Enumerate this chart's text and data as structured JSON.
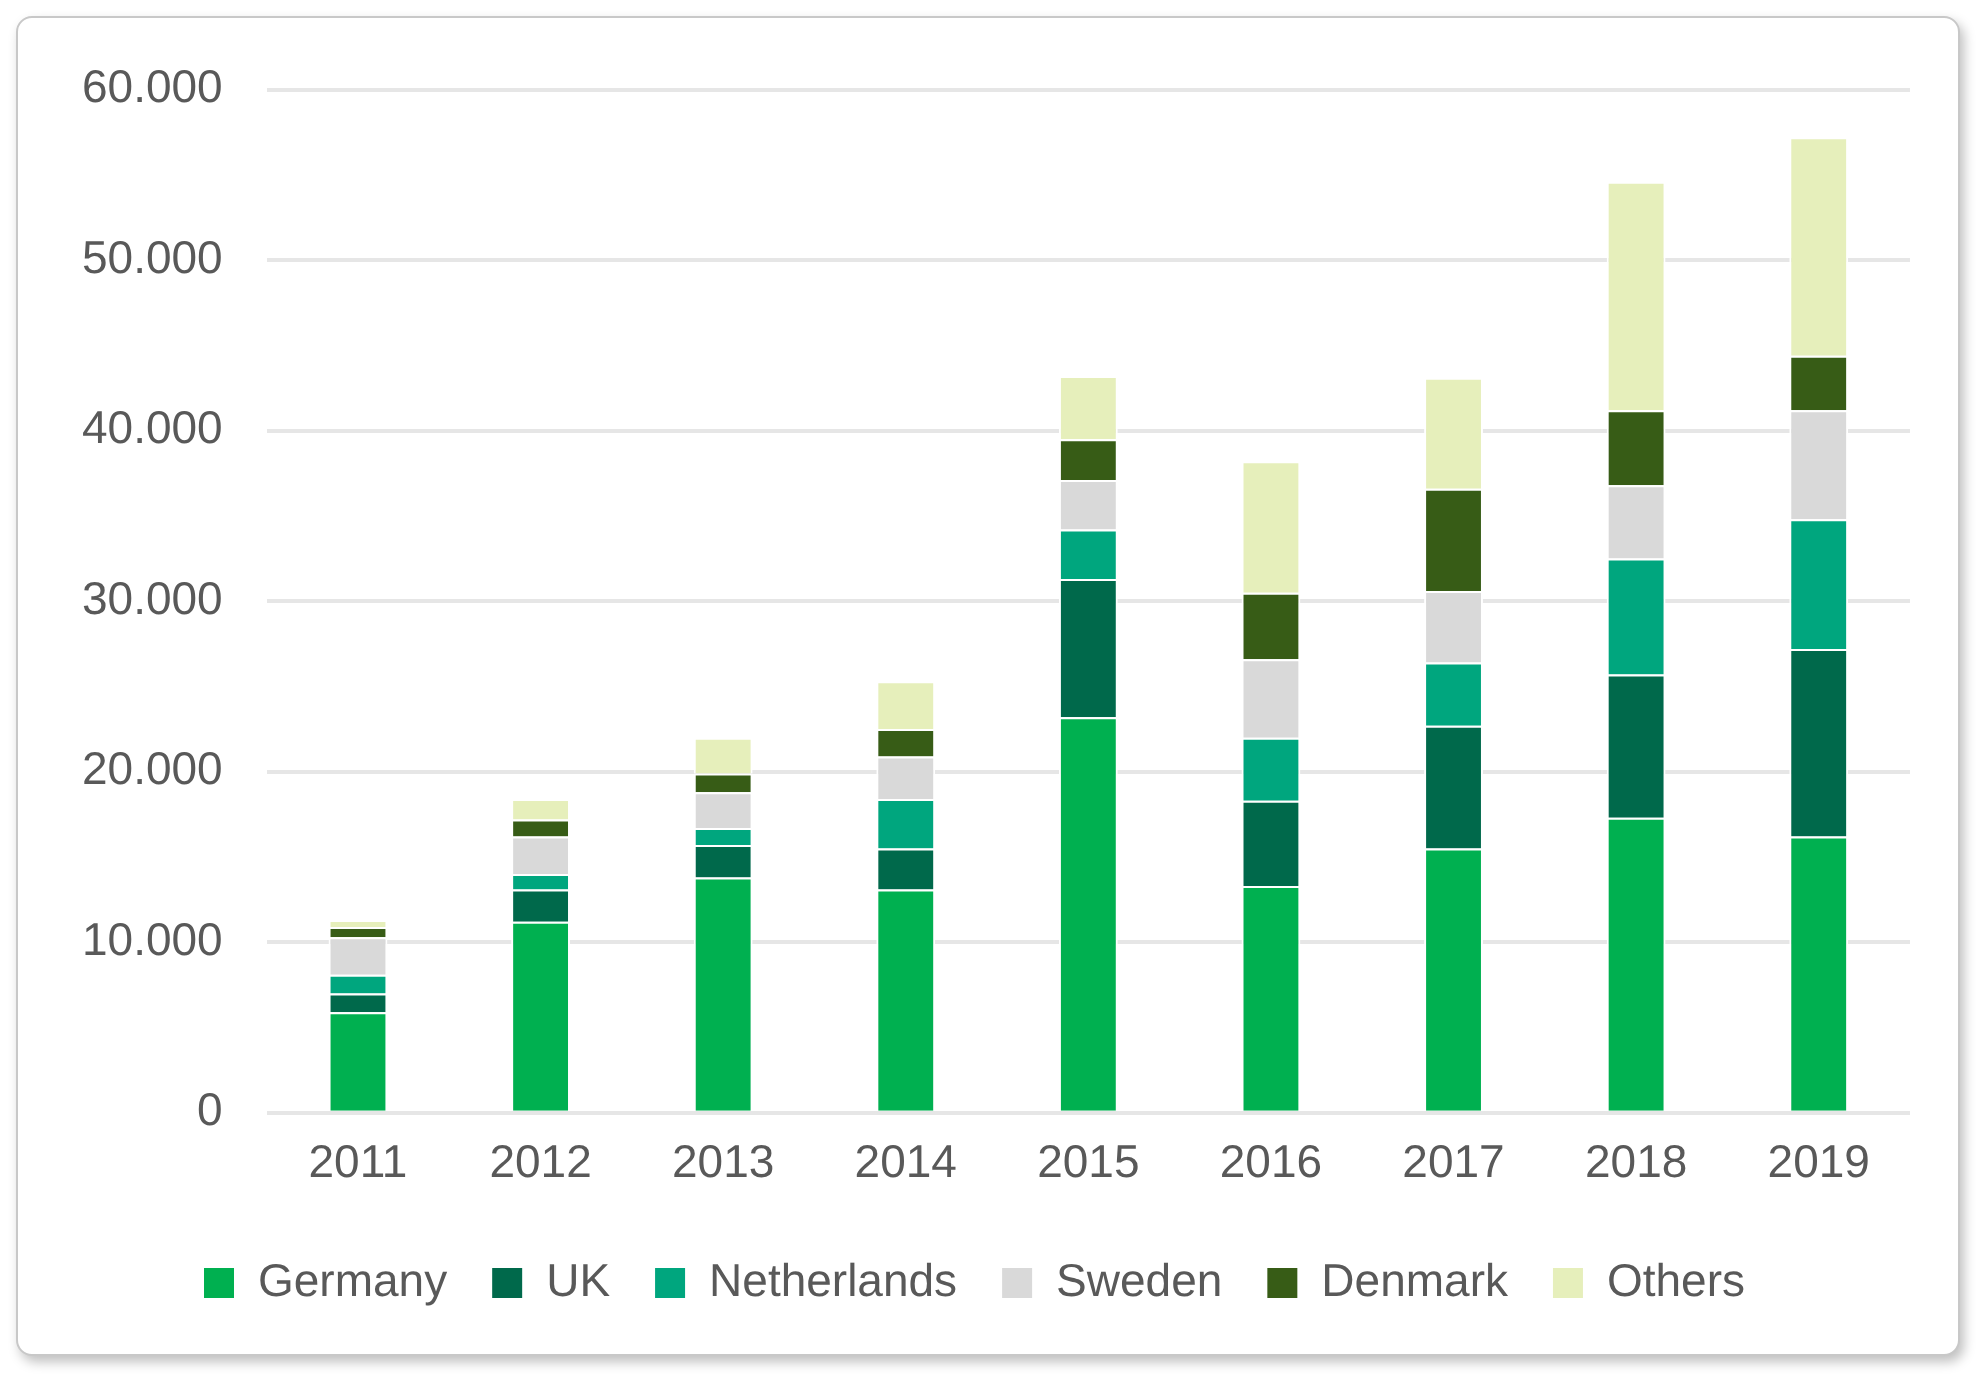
{
  "chart_data": {
    "type": "bar",
    "stacked": true,
    "categories": [
      "2011",
      "2012",
      "2013",
      "2014",
      "2015",
      "2016",
      "2017",
      "2018",
      "2019"
    ],
    "series": [
      {
        "name": "Germany",
        "color": "#00b050",
        "values": [
          5900,
          11200,
          13800,
          13100,
          23200,
          13300,
          15500,
          17300,
          16200
        ]
      },
      {
        "name": "UK",
        "color": "#00694b",
        "values": [
          1100,
          1900,
          1900,
          2400,
          8100,
          5000,
          7200,
          8400,
          11000
        ]
      },
      {
        "name": "Netherlands",
        "color": "#00a67e",
        "values": [
          1100,
          900,
          1000,
          2900,
          2900,
          3700,
          3700,
          6800,
          7600
        ]
      },
      {
        "name": "Sweden",
        "color": "#d9d9d9",
        "values": [
          2200,
          2200,
          2100,
          2500,
          2900,
          4600,
          4200,
          4300,
          6400
        ]
      },
      {
        "name": "Denmark",
        "color": "#375c16",
        "values": [
          600,
          1000,
          1100,
          1600,
          2400,
          3900,
          6000,
          4400,
          3200
        ]
      },
      {
        "name": "Others",
        "color": "#e6efbb",
        "values": [
          400,
          1200,
          2100,
          2800,
          3700,
          7700,
          6500,
          13400,
          12800
        ]
      }
    ],
    "ylim": [
      0,
      60000
    ],
    "yticks": [
      {
        "value": 0,
        "label": "0"
      },
      {
        "value": 10000,
        "label": "10.000"
      },
      {
        "value": 20000,
        "label": "20.000"
      },
      {
        "value": 30000,
        "label": "30.000"
      },
      {
        "value": 40000,
        "label": "40.000"
      },
      {
        "value": 50000,
        "label": "50.000"
      },
      {
        "value": 60000,
        "label": "60.000"
      }
    ],
    "grid": "y",
    "legend": "bottom"
  }
}
